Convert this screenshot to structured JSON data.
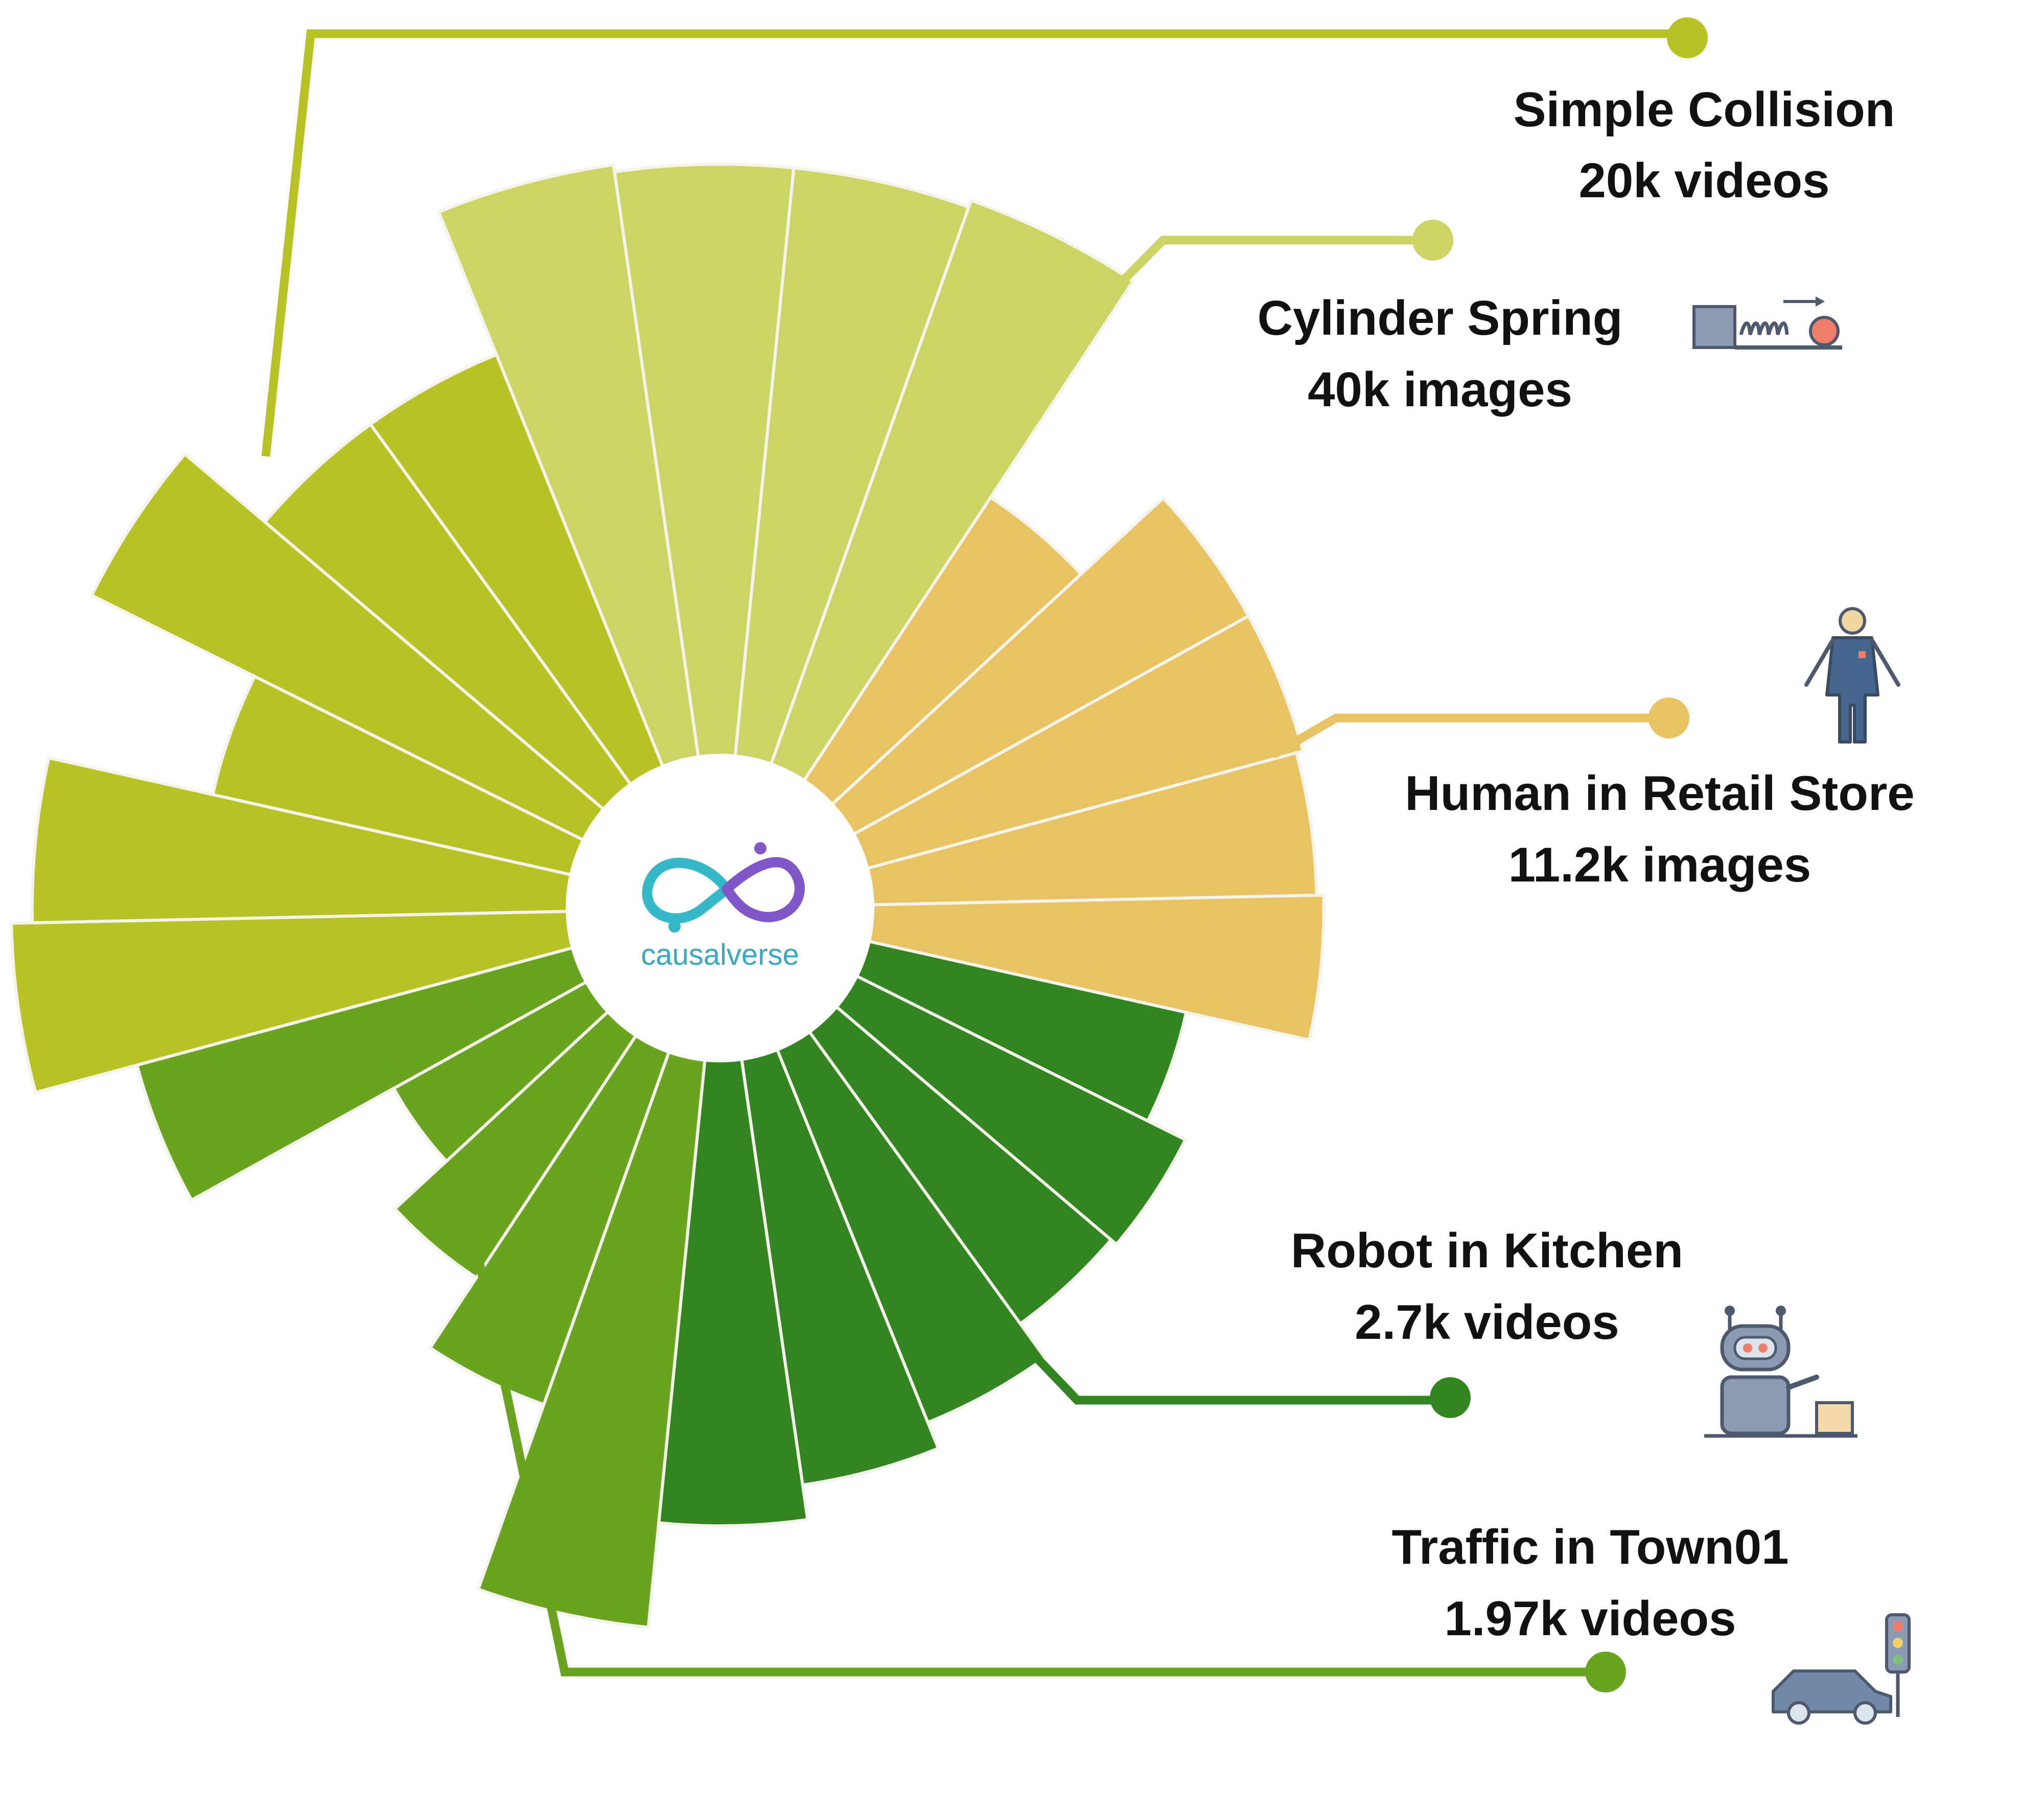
{
  "logo": {
    "name": "causalverse",
    "colors": {
      "left_loop": "#35b8c7",
      "right_loop": "#8057c9",
      "text": "#3aa7c4"
    }
  },
  "chart_data": {
    "type": "polar-bar",
    "title": "",
    "groups": [
      {
        "name": "Simple Collision",
        "count_label": "20k videos",
        "color": "#b9c224",
        "icon": ""
      },
      {
        "name": "Cylinder Spring",
        "count_label": "40k images",
        "color": "#cdd466",
        "icon": "spring-cylinder-icon"
      },
      {
        "name": "Human in Retail Store",
        "count_label": "11.2k images",
        "color": "#e8c263",
        "icon": "person-icon"
      },
      {
        "name": "Robot in Kitchen",
        "count_label": "2.7k videos",
        "color": "#338522",
        "icon": "robot-icon"
      },
      {
        "name": "Traffic in Town01",
        "count_label": "1.97k videos",
        "color": "#6aa320",
        "icon": "car-traffic-light-icon"
      }
    ],
    "bars": [
      {
        "group": 1,
        "value": 0.89
      },
      {
        "group": 1,
        "value": 0.88
      },
      {
        "group": 1,
        "value": 0.88
      },
      {
        "group": 1,
        "value": 0.89
      },
      {
        "group": 2,
        "value": 0.52
      },
      {
        "group": 2,
        "value": 0.68
      },
      {
        "group": 2,
        "value": 0.68
      },
      {
        "group": 2,
        "value": 0.67
      },
      {
        "group": 2,
        "value": 0.68
      },
      {
        "group": 3,
        "value": 0.5
      },
      {
        "group": 3,
        "value": 0.56
      },
      {
        "group": 3,
        "value": 0.55
      },
      {
        "group": 3,
        "value": 0.61
      },
      {
        "group": 3,
        "value": 0.65
      },
      {
        "group": 3,
        "value": 0.7
      },
      {
        "group": 4,
        "value": 0.85
      },
      {
        "group": 4,
        "value": 0.57
      },
      {
        "group": 4,
        "value": 0.45
      },
      {
        "group": 4,
        "value": 0.35
      },
      {
        "group": 4,
        "value": 0.68
      },
      {
        "group": 0,
        "value": 0.83
      },
      {
        "group": 0,
        "value": 0.8
      },
      {
        "group": 0,
        "value": 0.56
      },
      {
        "group": 0,
        "value": 0.82
      },
      {
        "group": 0,
        "value": 0.67
      },
      {
        "group": 0,
        "value": 0.67
      }
    ]
  }
}
